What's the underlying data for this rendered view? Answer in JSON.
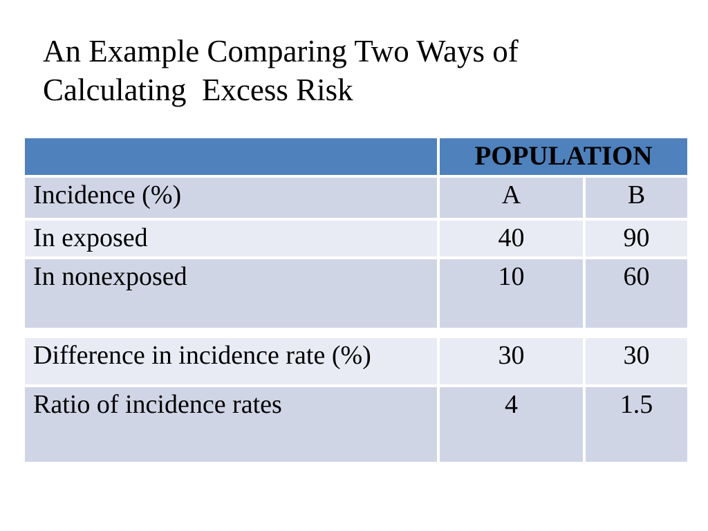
{
  "slide": {
    "title_line1": "An Example Comparing Two Ways of",
    "title_line2": "Calculating  Excess Risk"
  },
  "table": {
    "header": {
      "population_label": "POPULATION"
    },
    "rows": [
      {
        "label": "Incidence (%)",
        "a": "A",
        "b": "B"
      },
      {
        "label": "In exposed",
        "a": "40",
        "b": "90"
      },
      {
        "label": "In nonexposed",
        "a": "10",
        "b": "60"
      },
      {
        "label": "Difference in incidence rate (%)",
        "a": "30",
        "b": "30"
      },
      {
        "label": "Ratio of incidence rates",
        "a": "4",
        "b": "1.5"
      }
    ]
  },
  "chart_data": {
    "type": "table",
    "title": "An Example Comparing Two Ways of Calculating  Excess Risk",
    "column_group_header": "POPULATION",
    "columns": [
      "A",
      "B"
    ],
    "row_label_header": "Incidence (%)",
    "rows": [
      {
        "label": "In exposed",
        "A": 40,
        "B": 90
      },
      {
        "label": "In nonexposed",
        "A": 10,
        "B": 60
      },
      {
        "label": "Difference in incidence rate (%)",
        "A": 30,
        "B": 30
      },
      {
        "label": "Ratio of incidence rates",
        "A": 4,
        "B": 1.5
      }
    ]
  },
  "colors": {
    "header_bg": "#4F81BD",
    "band_dark": "#D0D5E6",
    "band_light": "#E9EBF4",
    "text": "#000000",
    "background": "#FFFFFF"
  }
}
